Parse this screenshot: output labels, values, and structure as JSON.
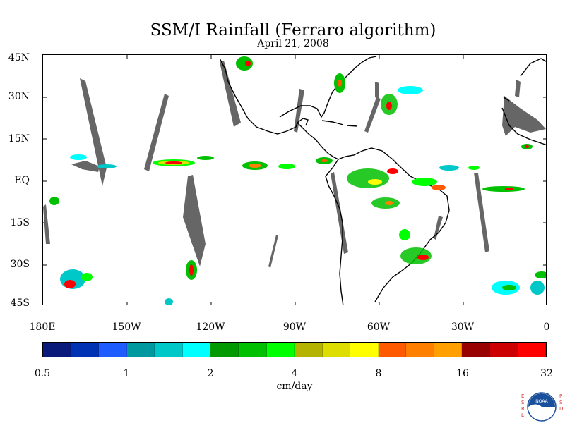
{
  "title": "SSM/I Rainfall (Ferraro algorithm)",
  "subtitle": "April 21, 2008",
  "lat_labels": [
    "45N",
    "30N",
    "15N",
    "EQ",
    "15S",
    "30S",
    "45S"
  ],
  "lon_labels": [
    "180E",
    "150W",
    "120W",
    "90W",
    "60W",
    "30W",
    "0"
  ],
  "colorbar": {
    "colors": [
      "#0a1a7a",
      "#0033b3",
      "#1f5cff",
      "#00999f",
      "#00c8c8",
      "#00ffff",
      "#009900",
      "#00c000",
      "#00ff00",
      "#b3b300",
      "#dddd00",
      "#ffff00",
      "#ff5a00",
      "#ff8000",
      "#ffa000",
      "#990000",
      "#cc0000",
      "#ff0000"
    ],
    "ticks": [
      "0.5",
      "1",
      "2",
      "4",
      "8",
      "16",
      "32"
    ],
    "units": "cm/day"
  },
  "logo": {
    "left_letters": [
      "E",
      "S",
      "R",
      "L"
    ],
    "center_text": "NOAA",
    "right_letters": [
      "P",
      "S",
      "D"
    ]
  }
}
